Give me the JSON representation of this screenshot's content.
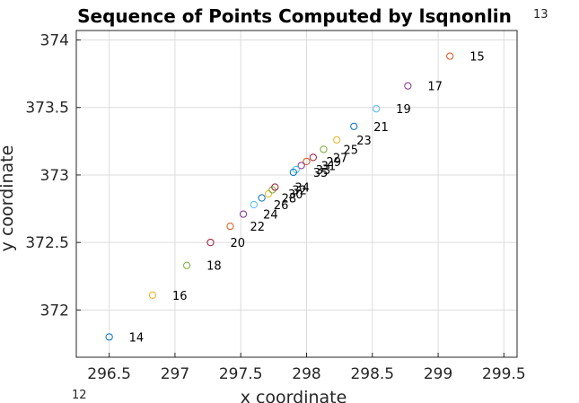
{
  "chart_data": {
    "type": "scatter",
    "title": "Sequence of Points Computed by lsqnonlin",
    "xlabel": "x coordinate",
    "ylabel": "y coordinate",
    "xlim": [
      296.25,
      299.6
    ],
    "ylim": [
      371.65,
      374.07
    ],
    "xticks": [
      "296.5",
      "297",
      "297.5",
      "298",
      "298.5",
      "299",
      "299.5"
    ],
    "yticks": [
      "372",
      "372.5",
      "373",
      "373.5",
      "374"
    ],
    "title_exponent": "13",
    "x_exponent": "12",
    "grid": true,
    "marker": "open-circle",
    "points": [
      {
        "label": "14",
        "x": 296.5,
        "y": 371.8,
        "color": "#0072BD"
      },
      {
        "label": "15",
        "x": 299.09,
        "y": 373.88,
        "color": "#D95319"
      },
      {
        "label": "16",
        "x": 296.83,
        "y": 372.11,
        "color": "#EDB120"
      },
      {
        "label": "17",
        "x": 298.77,
        "y": 373.66,
        "color": "#7E2F8E"
      },
      {
        "label": "18",
        "x": 297.09,
        "y": 372.33,
        "color": "#77AC30"
      },
      {
        "label": "19",
        "x": 298.53,
        "y": 373.49,
        "color": "#4DBEEE"
      },
      {
        "label": "20",
        "x": 297.27,
        "y": 372.5,
        "color": "#A2142F"
      },
      {
        "label": "21",
        "x": 298.36,
        "y": 373.36,
        "color": "#0072BD"
      },
      {
        "label": "22",
        "x": 297.42,
        "y": 372.62,
        "color": "#D95319"
      },
      {
        "label": "23",
        "x": 298.23,
        "y": 373.26,
        "color": "#EDB120"
      },
      {
        "label": "24",
        "x": 297.52,
        "y": 372.71,
        "color": "#7E2F8E"
      },
      {
        "label": "25",
        "x": 298.13,
        "y": 373.19,
        "color": "#77AC30"
      },
      {
        "label": "26",
        "x": 297.6,
        "y": 372.78,
        "color": "#4DBEEE"
      },
      {
        "label": "27",
        "x": 298.05,
        "y": 373.13,
        "color": "#A2142F"
      },
      {
        "label": "28",
        "x": 297.66,
        "y": 372.83,
        "color": "#0072BD"
      },
      {
        "label": "29",
        "x": 298.0,
        "y": 373.1,
        "color": "#D95319"
      },
      {
        "label": "30",
        "x": 297.71,
        "y": 372.86,
        "color": "#EDB120"
      },
      {
        "label": "31",
        "x": 297.96,
        "y": 373.07,
        "color": "#7E2F8E"
      },
      {
        "label": "32",
        "x": 297.74,
        "y": 372.89,
        "color": "#77AC30"
      },
      {
        "label": "33",
        "x": 297.92,
        "y": 373.04,
        "color": "#4DBEEE"
      },
      {
        "label": "34",
        "x": 297.76,
        "y": 372.91,
        "color": "#A2142F"
      },
      {
        "label": "35",
        "x": 297.9,
        "y": 373.02,
        "color": "#0072BD"
      }
    ]
  }
}
